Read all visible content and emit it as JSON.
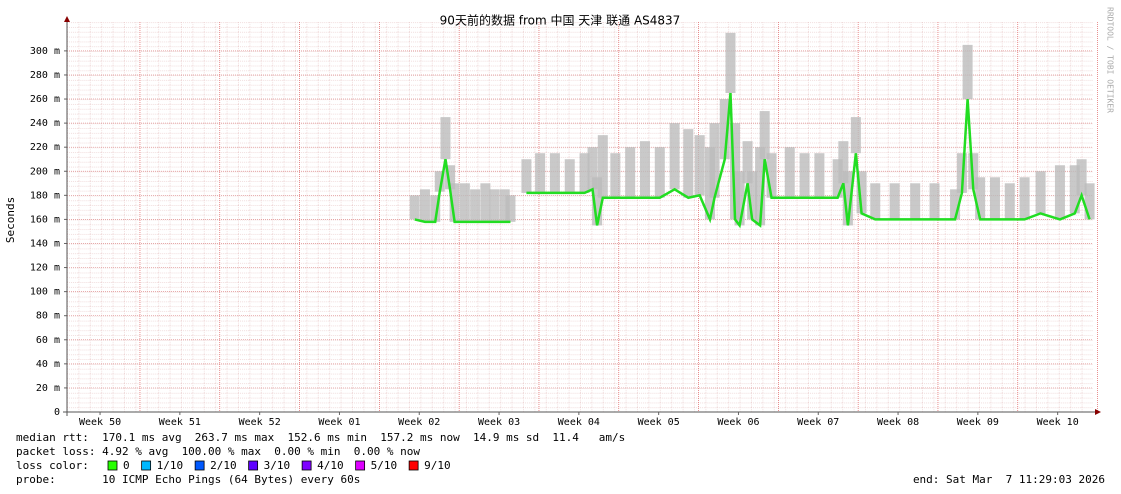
{
  "chart_data": {
    "type": "line",
    "title": "90天前的数据 from 中国 天津 联通 AS4837",
    "y_label": "Seconds",
    "side_note": "RRDTOOL / TOBI OETIKER",
    "xlim": [
      0,
      90
    ],
    "ylim": [
      0,
      0.324
    ],
    "xticks": [
      {
        "value": 2.9,
        "label": "Week 50"
      },
      {
        "value": 9.9,
        "label": "Week 51"
      },
      {
        "value": 16.9,
        "label": "Week 52"
      },
      {
        "value": 23.9,
        "label": "Week 01"
      },
      {
        "value": 30.9,
        "label": "Week 02"
      },
      {
        "value": 37.9,
        "label": "Week 03"
      },
      {
        "value": 44.9,
        "label": "Week 04"
      },
      {
        "value": 51.9,
        "label": "Week 05"
      },
      {
        "value": 58.9,
        "label": "Week 06"
      },
      {
        "value": 65.9,
        "label": "Week 07"
      },
      {
        "value": 72.9,
        "label": "Week 08"
      },
      {
        "value": 79.9,
        "label": "Week 09"
      },
      {
        "value": 86.9,
        "label": "Week 10"
      }
    ],
    "yticks": [
      0,
      {
        "value": 0.02,
        "label": "20 m"
      },
      {
        "value": 0.04,
        "label": "40 m"
      },
      {
        "value": 0.06,
        "label": "60 m"
      },
      {
        "value": 0.08,
        "label": "80 m"
      },
      {
        "value": 0.1,
        "label": "100 m"
      },
      {
        "value": 0.12,
        "label": "120 m"
      },
      {
        "value": 0.14,
        "label": "140 m"
      },
      {
        "value": 0.16,
        "label": "160 m"
      },
      {
        "value": 0.18,
        "label": "180 m"
      },
      {
        "value": 0.2,
        "label": "200 m"
      },
      {
        "value": 0.22,
        "label": "220 m"
      },
      {
        "value": 0.24,
        "label": "240 m"
      },
      {
        "value": 0.26,
        "label": "260 m"
      },
      {
        "value": 0.28,
        "label": "280 m"
      },
      {
        "value": 0.3,
        "label": "300 m"
      }
    ],
    "grid": true,
    "x": [
      30.5,
      31.4,
      32.3,
      32.7,
      33.2,
      33.6,
      34.0,
      34.9,
      35.8,
      36.7,
      37.5,
      38.4,
      38.9,
      39.5,
      40.3,
      41.5,
      42.8,
      44.1,
      45.4,
      46.1,
      46.5,
      47.0,
      48.1,
      49.4,
      50.7,
      52.0,
      53.3,
      54.5,
      55.5,
      56.4,
      56.8,
      57.7,
      58.2,
      58.6,
      59.0,
      59.7,
      60.1,
      60.8,
      61.2,
      61.8,
      63.4,
      64.7,
      66.0,
      67.6,
      68.1,
      68.5,
      69.2,
      69.7,
      70.9,
      72.6,
      74.4,
      76.1,
      77.9,
      78.5,
      79.0,
      79.5,
      80.1,
      81.4,
      82.7,
      84.0,
      85.4,
      87.1,
      88.4,
      89.0,
      89.7
    ],
    "series": [
      {
        "name": "median rtt",
        "color": "#22dd22",
        "values": [
          0.16,
          0.158,
          0.158,
          0.183,
          0.21,
          0.185,
          0.158,
          0.158,
          0.158,
          0.158,
          0.158,
          0.158,
          0.158,
          null,
          0.182,
          0.182,
          0.182,
          0.182,
          0.182,
          0.185,
          0.155,
          0.178,
          0.178,
          0.178,
          0.178,
          0.178,
          0.185,
          0.178,
          0.18,
          0.16,
          0.178,
          0.21,
          0.265,
          0.16,
          0.155,
          0.19,
          0.16,
          0.155,
          0.21,
          0.178,
          0.178,
          0.178,
          0.178,
          0.178,
          0.19,
          0.155,
          0.215,
          0.165,
          0.16,
          0.16,
          0.16,
          0.16,
          0.16,
          0.182,
          0.26,
          0.185,
          0.16,
          0.16,
          0.16,
          0.16,
          0.165,
          0.16,
          0.165,
          0.18,
          0.16
        ]
      },
      {
        "name": "max rtt",
        "color": "#bbbbbb",
        "values": [
          0.18,
          0.185,
          0.18,
          0.2,
          0.245,
          0.205,
          0.19,
          0.19,
          0.185,
          0.19,
          0.185,
          0.185,
          0.18,
          null,
          0.21,
          0.215,
          0.215,
          0.21,
          0.215,
          0.22,
          0.195,
          0.23,
          0.215,
          0.22,
          0.225,
          0.22,
          0.24,
          0.235,
          0.23,
          0.22,
          0.24,
          0.26,
          0.315,
          0.24,
          0.2,
          0.225,
          0.2,
          0.22,
          0.25,
          0.215,
          0.22,
          0.215,
          0.215,
          0.21,
          0.225,
          0.2,
          0.245,
          0.2,
          0.19,
          0.19,
          0.19,
          0.19,
          0.185,
          0.215,
          0.305,
          0.215,
          0.195,
          0.195,
          0.19,
          0.195,
          0.2,
          0.205,
          0.205,
          0.21,
          0.19
        ]
      }
    ],
    "stats": [
      "median rtt:  170.1 ms avg  263.7 ms max  152.6 ms min  157.2 ms now  14.9 ms sd  11.4   am/s",
      "packet loss: 4.92 % avg  100.00 % max  0.00 % min  0.00 % now"
    ],
    "loss_label": "loss color:",
    "loss_colors": [
      {
        "label": "0",
        "color": "#26ff00"
      },
      {
        "label": "1/10",
        "color": "#00b8ff"
      },
      {
        "label": "2/10",
        "color": "#0059ff"
      },
      {
        "label": "3/10",
        "color": "#5e00ff"
      },
      {
        "label": "4/10",
        "color": "#7e00ff"
      },
      {
        "label": "5/10",
        "color": "#dd00ff"
      },
      {
        "label": "9/10",
        "color": "#ff0000"
      }
    ],
    "probe": "probe:       10 ICMP Echo Pings (64 Bytes) every 60s",
    "end": "end: Sat Mar  7 11:29:03 2026"
  }
}
